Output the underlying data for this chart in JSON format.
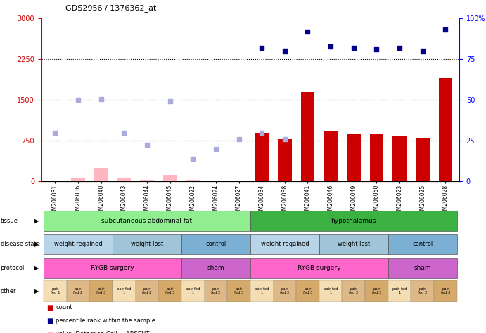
{
  "title": "GDS2956 / 1376362_at",
  "samples": [
    "GSM206031",
    "GSM206036",
    "GSM206040",
    "GSM206043",
    "GSM206044",
    "GSM206045",
    "GSM206022",
    "GSM206024",
    "GSM206027",
    "GSM206034",
    "GSM206038",
    "GSM206041",
    "GSM206046",
    "GSM206049",
    "GSM206050",
    "GSM206023",
    "GSM206025",
    "GSM206028"
  ],
  "count_values": [
    0,
    50,
    250,
    60,
    30,
    120,
    30,
    0,
    0,
    900,
    780,
    1650,
    920,
    870,
    870,
    850,
    800,
    1900
  ],
  "count_absent": [
    true,
    true,
    true,
    true,
    true,
    true,
    true,
    true,
    true,
    false,
    false,
    false,
    false,
    false,
    false,
    false,
    false,
    false
  ],
  "rank_values": [
    900,
    1500,
    1520,
    900,
    680,
    1480,
    420,
    600,
    780,
    900,
    780,
    null,
    null,
    null,
    null,
    null,
    null,
    null
  ],
  "rank_absent": [
    true,
    true,
    true,
    true,
    true,
    true,
    true,
    true,
    true,
    true,
    true,
    null,
    null,
    null,
    null,
    null,
    null,
    null
  ],
  "percentile_values": [
    null,
    null,
    null,
    null,
    null,
    null,
    null,
    null,
    null,
    82,
    80,
    92,
    83,
    82,
    81,
    82,
    80,
    93
  ],
  "ylim_left": [
    0,
    3000
  ],
  "ylim_right": [
    0,
    100
  ],
  "yticks_left": [
    0,
    750,
    1500,
    2250,
    3000
  ],
  "yticks_right": [
    0,
    25,
    50,
    75,
    100
  ],
  "tissue_groups": [
    {
      "label": "subcutaneous abdominal fat",
      "start": 0,
      "end": 9,
      "color": "#90ee90"
    },
    {
      "label": "hypothalamus",
      "start": 9,
      "end": 18,
      "color": "#3cb043"
    }
  ],
  "disease_groups": [
    {
      "label": "weight regained",
      "start": 0,
      "end": 3,
      "color": "#b8d4e8"
    },
    {
      "label": "weight lost",
      "start": 3,
      "end": 6,
      "color": "#a0c4d8"
    },
    {
      "label": "control",
      "start": 6,
      "end": 9,
      "color": "#7bafd4"
    },
    {
      "label": "weight regained",
      "start": 9,
      "end": 12,
      "color": "#b8d4e8"
    },
    {
      "label": "weight lost",
      "start": 12,
      "end": 15,
      "color": "#a0c4d8"
    },
    {
      "label": "control",
      "start": 15,
      "end": 18,
      "color": "#7bafd4"
    }
  ],
  "protocol_groups": [
    {
      "label": "RYGB surgery",
      "start": 0,
      "end": 6,
      "color": "#ff66cc"
    },
    {
      "label": "sham",
      "start": 6,
      "end": 9,
      "color": "#cc66cc"
    },
    {
      "label": "RYGB surgery",
      "start": 9,
      "end": 15,
      "color": "#ff66cc"
    },
    {
      "label": "sham",
      "start": 15,
      "end": 18,
      "color": "#cc66cc"
    }
  ],
  "other_labels": [
    "pair\nfed 1",
    "pair\nfed 2",
    "pair\nfed 3",
    "pair fed\n1",
    "pair\nfed 2",
    "pair\nfed 3",
    "pair fed\n1",
    "pair\nfed 2",
    "pair\nfed 3",
    "pair fed\n1",
    "pair\nfed 2",
    "pair\nfed 3",
    "pair fed\n1",
    "pair\nfed 2",
    "pair\nfed 3",
    "pair fed\n1",
    "pair\nfed 2",
    "pair\nfed 3"
  ],
  "other_colors": [
    "#f5deb3",
    "#deb887",
    "#d4a96a",
    "#f5deb3",
    "#deb887",
    "#d4a96a",
    "#f5deb3",
    "#deb887",
    "#d4a96a",
    "#f5deb3",
    "#deb887",
    "#d4a96a",
    "#f5deb3",
    "#deb887",
    "#d4a96a",
    "#f5deb3",
    "#deb887",
    "#d4a96a"
  ],
  "bar_color_present": "#cc0000",
  "bar_color_absent": "#ffb6c1",
  "rank_color_absent": "#aaaadd",
  "percentile_color": "#00008b",
  "background_color": "#ffffff"
}
